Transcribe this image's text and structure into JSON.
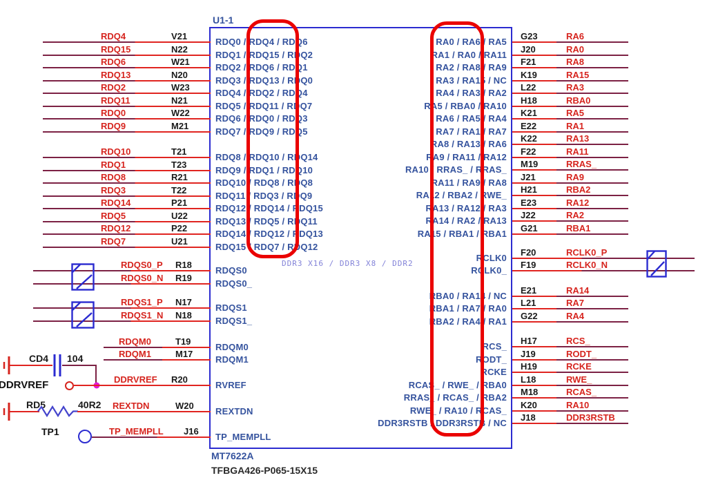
{
  "title_block": {
    "refdes": "U1-1",
    "part_number": "MT7622A",
    "package": "TFBGA426-P065-15X15",
    "mode_note": "DDR3 X16 / DDR3 X8 / DDR2"
  },
  "colors": {
    "net_label": "#d6241e",
    "wire_red": "#e02420",
    "wire_maroon": "#7c2144",
    "chip_border": "#2b2bd0",
    "pin_function_text": "#35539e",
    "pin_number_text": "#1a1a1a",
    "highlight_box": "#ea0000",
    "mode_note_text": "#8282d8",
    "junction_dot": "#e516d6"
  },
  "left_groups": [
    {
      "rows": [
        {
          "net": "RDQ4",
          "pin": "V21",
          "fn": "RDQ0 / RDQ4 / RDQ6"
        },
        {
          "net": "RDQ15",
          "pin": "N22",
          "fn": "RDQ1 / RDQ15 / RDQ2"
        },
        {
          "net": "RDQ6",
          "pin": "W21",
          "fn": "RDQ2 / RDQ6 / RDQ1"
        },
        {
          "net": "RDQ13",
          "pin": "N20",
          "fn": "RDQ3 / RDQ13 / RDQ0"
        },
        {
          "net": "RDQ2",
          "pin": "W23",
          "fn": "RDQ4 / RDQ2 / RDQ4"
        },
        {
          "net": "RDQ11",
          "pin": "N21",
          "fn": "RDQ5 / RDQ11 / RDQ7"
        },
        {
          "net": "RDQ0",
          "pin": "W22",
          "fn": "RDQ6 / RDQ0 / RDQ3"
        },
        {
          "net": "RDQ9",
          "pin": "M21",
          "fn": "RDQ7 / RDQ9 / RDQ5"
        }
      ]
    },
    {
      "rows": [
        {
          "net": "RDQ10",
          "pin": "T21",
          "fn": "RDQ8 / RDQ10 / RDQ14"
        },
        {
          "net": "RDQ1",
          "pin": "T23",
          "fn": "RDQ9 / RDQ1 / RDQ10"
        },
        {
          "net": "RDQ8",
          "pin": "R21",
          "fn": "RDQ10 / RDQ8 / RDQ8"
        },
        {
          "net": "RDQ3",
          "pin": "T22",
          "fn": "RDQ11 / RDQ3 / RDQ9"
        },
        {
          "net": "RDQ14",
          "pin": "P21",
          "fn": "RDQ12 / RDQ14 / RDQ15"
        },
        {
          "net": "RDQ5",
          "pin": "U22",
          "fn": "RDQ13 / RDQ5 / RDQ11"
        },
        {
          "net": "RDQ12",
          "pin": "P22",
          "fn": "RDQ14 / RDQ12 / RDQ13"
        },
        {
          "net": "RDQ7",
          "pin": "U21",
          "fn": "RDQ15 / RDQ7 / RDQ12"
        }
      ]
    },
    {
      "rows": [
        {
          "net": "RDQS0_P",
          "pin": "R18",
          "fn": "RDQS0"
        },
        {
          "net": "RDQS0_N",
          "pin": "R19",
          "fn": "RDQS0_"
        }
      ]
    },
    {
      "rows": [
        {
          "net": "RDQS1_P",
          "pin": "N17",
          "fn": "RDQS1"
        },
        {
          "net": "RDQS1_N",
          "pin": "N18",
          "fn": "RDQS1_"
        }
      ]
    },
    {
      "rows": [
        {
          "net": "RDQM0",
          "pin": "T19",
          "fn": "RDQM0"
        },
        {
          "net": "RDQM1",
          "pin": "M17",
          "fn": "RDQM1"
        }
      ]
    },
    {
      "rows": [
        {
          "net": "DDRVREF",
          "pin": "R20",
          "fn": "RVREF"
        }
      ]
    },
    {
      "rows": [
        {
          "net": "REXTDN",
          "pin": "W20",
          "fn": "REXTDN"
        }
      ]
    },
    {
      "rows": [
        {
          "net": "TP_MEMPLL",
          "pin": "J16",
          "fn": "TP_MEMPLL"
        }
      ]
    }
  ],
  "right_groups": [
    {
      "rows": [
        {
          "fn": "RA0 / RA6 / RA5",
          "pin": "G23",
          "net": "RA6"
        },
        {
          "fn": "RA1 / RA0 / RA11",
          "pin": "J20",
          "net": "RA0"
        },
        {
          "fn": "RA2 / RA8 / RA9",
          "pin": "F21",
          "net": "RA8"
        },
        {
          "fn": "RA3 / RA15 / NC",
          "pin": "K19",
          "net": "RA15"
        },
        {
          "fn": "RA4 / RA3 / RA2",
          "pin": "L22",
          "net": "RA3"
        },
        {
          "fn": "RA5 / RBA0 / RA10",
          "pin": "H18",
          "net": "RBA0"
        },
        {
          "fn": "RA6 / RA5 / RA4",
          "pin": "K21",
          "net": "RA5"
        },
        {
          "fn": "RA7 / RA1 / RA7",
          "pin": "E22",
          "net": "RA1"
        },
        {
          "fn": "RA8 / RA13 / RA6",
          "pin": "K22",
          "net": "RA13"
        },
        {
          "fn": "RA9 / RA11 / RA12",
          "pin": "F22",
          "net": "RA11"
        },
        {
          "fn": "RA10 / RRAS_ / RRAS_",
          "pin": "M19",
          "net": "RRAS_"
        },
        {
          "fn": "RA11 / RA9 / RA8",
          "pin": "J21",
          "net": "RA9"
        },
        {
          "fn": "RA12 / RBA2 / RWE_",
          "pin": "H21",
          "net": "RBA2"
        },
        {
          "fn": "RA13 / RA12 / RA3",
          "pin": "E23",
          "net": "RA12"
        },
        {
          "fn": "RA14 / RA2 / RA13",
          "pin": "J22",
          "net": "RA2"
        },
        {
          "fn": "RA15 / RBA1 / RBA1",
          "pin": "G21",
          "net": "RBA1"
        }
      ]
    },
    {
      "rows": [
        {
          "fn": "RCLK0",
          "pin": "F20",
          "net": "RCLK0_P"
        },
        {
          "fn": "RCLK0_",
          "pin": "F19",
          "net": "RCLK0_N"
        }
      ]
    },
    {
      "rows": [
        {
          "fn": "RBA0 / RA14 / NC",
          "pin": "E21",
          "net": "RA14"
        },
        {
          "fn": "RBA1 / RA7 / RA0",
          "pin": "L21",
          "net": "RA7"
        },
        {
          "fn": "RBA2 / RA4 / RA1",
          "pin": "G22",
          "net": "RA4"
        }
      ]
    },
    {
      "rows": [
        {
          "fn": "RCS_",
          "pin": "H17",
          "net": "RCS_"
        },
        {
          "fn": "RODT_",
          "pin": "J19",
          "net": "RODT_"
        },
        {
          "fn": "RCKE",
          "pin": "H19",
          "net": "RCKE"
        },
        {
          "fn": "RCAS_ / RWE_ / RBA0",
          "pin": "L18",
          "net": "RWE_"
        },
        {
          "fn": "RRAS_ / RCAS_ / RBA2",
          "pin": "M18",
          "net": "RCAS_"
        },
        {
          "fn": "RWE_ / RA10 / RCAS_",
          "pin": "K20",
          "net": "RA10"
        },
        {
          "fn": "DDR3RSTB / DDR3RSTB / NC",
          "pin": "J18",
          "net": "DDR3RSTB"
        }
      ]
    }
  ],
  "analog": {
    "cap_ref": "CD4",
    "cap_value": "104",
    "vref_port": "DDRVREF",
    "res_ref": "RD5",
    "res_value": "40R2",
    "tp_ref": "TP1"
  }
}
